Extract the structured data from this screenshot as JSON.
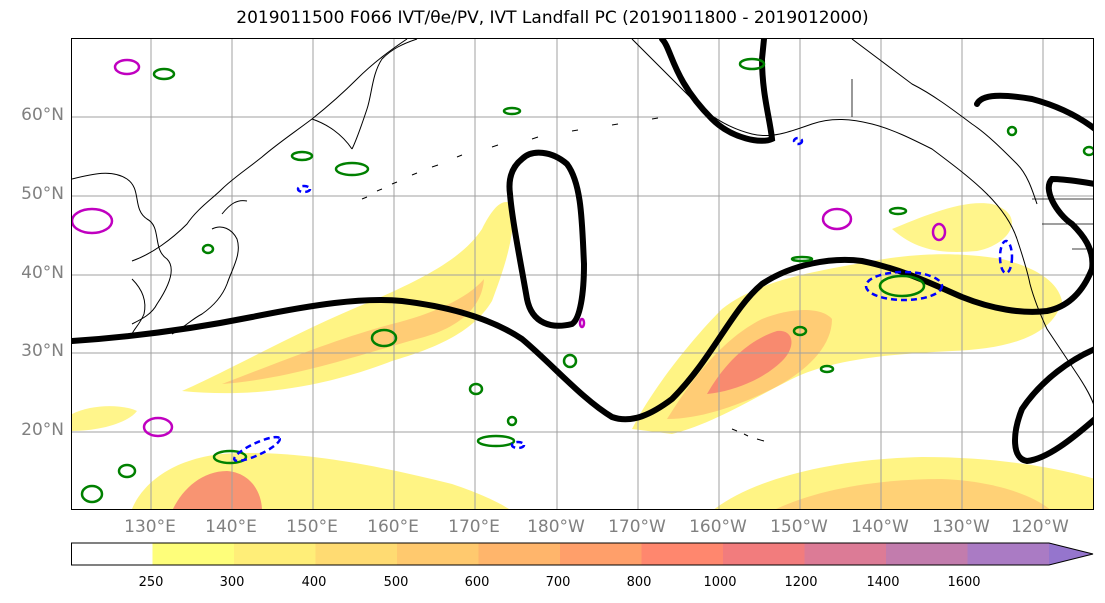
{
  "title": "2019011500 F066 IVT/θe/PV, IVT Landfall PC (2019011800 - 2019012000)",
  "lat_labels": [
    "60°N",
    "50°N",
    "40°N",
    "30°N",
    "20°N"
  ],
  "lon_labels": [
    "130°E",
    "140°E",
    "150°E",
    "160°E",
    "170°E",
    "180°W",
    "170°W",
    "160°W",
    "150°W",
    "140°W",
    "130°W",
    "120°W"
  ],
  "colorbar": {
    "levels": [
      "250",
      "300",
      "400",
      "500",
      "600",
      "700",
      "800",
      "1000",
      "1200",
      "1400",
      "1600"
    ],
    "colors": [
      "#ffffff",
      "#fefe7a",
      "#ffee78",
      "#ffdb72",
      "#ffc96e",
      "#ffb56b",
      "#ff9f6a",
      "#ff876e",
      "#f27c7d",
      "#dc7b96",
      "#c27cad",
      "#aa7bc4",
      "#9575cd"
    ]
  },
  "contour_colors": {
    "ivt_fill_low": "#fff26e",
    "ivt_fill_mid": "#ffc873",
    "ivt_fill_high": "#f7836f",
    "theta_e": "#000000",
    "pv_green": "#008000",
    "pv_blue": "#0000ff",
    "pv_magenta": "#c000c0"
  }
}
